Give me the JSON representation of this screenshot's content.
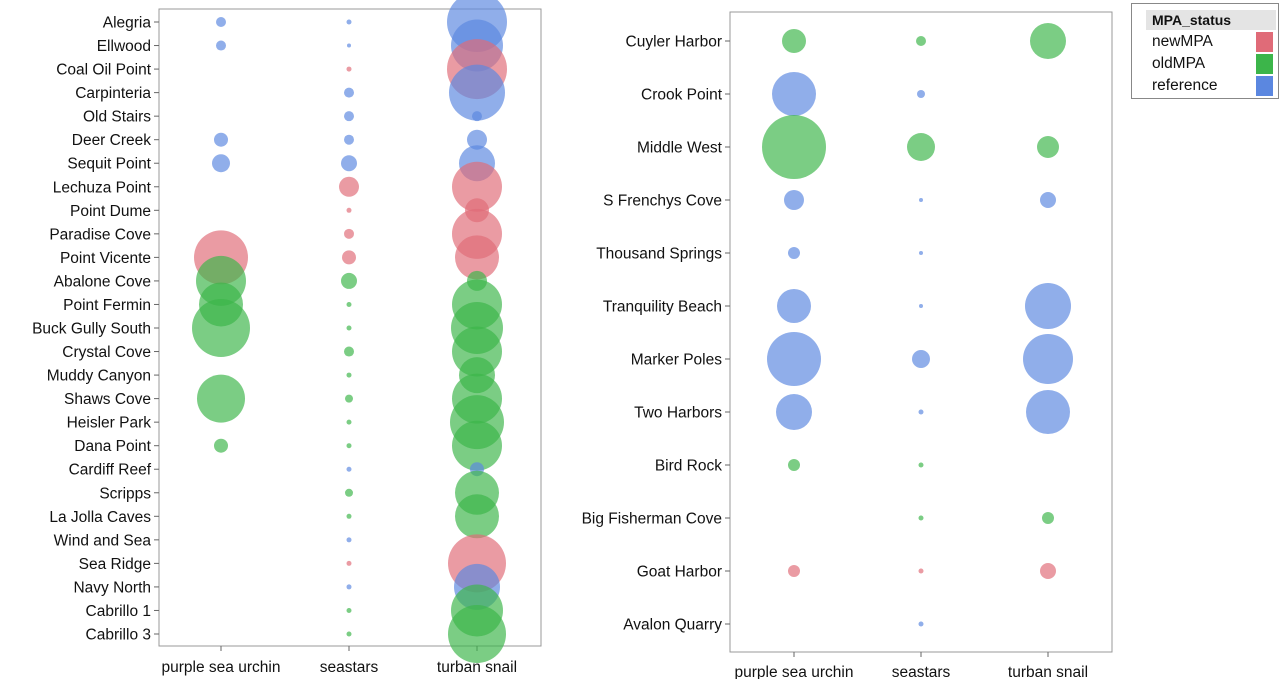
{
  "colors": {
    "newMPA": "#e06b78",
    "oldMPA": "#3cb54a",
    "reference": "#5b87e0"
  },
  "legend": {
    "title": "MPA_status",
    "items": [
      {
        "label": "newMPA",
        "key": "newMPA"
      },
      {
        "label": "oldMPA",
        "key": "oldMPA"
      },
      {
        "label": "reference",
        "key": "reference"
      }
    ]
  },
  "chart_data": [
    {
      "type": "scatter",
      "subtype": "bubble-matrix",
      "categories_x": [
        "purple sea urchin",
        "seastars",
        "turban snail"
      ],
      "size_unit": "bubble radius (relative)",
      "sites": [
        {
          "name": "Alegria",
          "status": "reference",
          "values": [
            5,
            2.5,
            30
          ]
        },
        {
          "name": "Ellwood",
          "status": "reference",
          "values": [
            5,
            2,
            26
          ]
        },
        {
          "name": "Coal Oil Point",
          "status": "newMPA",
          "values": [
            0,
            2.5,
            30
          ]
        },
        {
          "name": "Carpinteria",
          "status": "reference",
          "values": [
            0,
            5,
            28
          ]
        },
        {
          "name": "Old Stairs",
          "status": "reference",
          "values": [
            0,
            5,
            5
          ]
        },
        {
          "name": "Deer Creek",
          "status": "reference",
          "values": [
            7,
            5,
            10
          ]
        },
        {
          "name": "Sequit Point",
          "status": "reference",
          "values": [
            9,
            8,
            18
          ]
        },
        {
          "name": "Lechuza Point",
          "status": "newMPA",
          "values": [
            0,
            10,
            25
          ]
        },
        {
          "name": "Point Dume",
          "status": "newMPA",
          "values": [
            0,
            2.5,
            12
          ]
        },
        {
          "name": "Paradise Cove",
          "status": "newMPA",
          "values": [
            0,
            5,
            25
          ]
        },
        {
          "name": "Point Vicente",
          "status": "newMPA",
          "values": [
            27,
            7,
            22
          ]
        },
        {
          "name": "Abalone Cove",
          "status": "oldMPA",
          "values": [
            25,
            8,
            10
          ]
        },
        {
          "name": "Point Fermin",
          "status": "oldMPA",
          "values": [
            22,
            2.5,
            25
          ]
        },
        {
          "name": "Buck Gully South",
          "status": "oldMPA",
          "values": [
            29,
            2.5,
            26
          ]
        },
        {
          "name": "Crystal Cove",
          "status": "oldMPA",
          "values": [
            0,
            5,
            25
          ]
        },
        {
          "name": "Muddy Canyon",
          "status": "oldMPA",
          "values": [
            0,
            2.5,
            18
          ]
        },
        {
          "name": "Shaws Cove",
          "status": "oldMPA",
          "values": [
            24,
            4,
            25
          ]
        },
        {
          "name": "Heisler Park",
          "status": "oldMPA",
          "values": [
            0,
            2.5,
            27
          ]
        },
        {
          "name": "Dana Point",
          "status": "oldMPA",
          "values": [
            7,
            2.5,
            25
          ]
        },
        {
          "name": "Cardiff Reef",
          "status": "reference",
          "values": [
            0,
            2.5,
            7
          ]
        },
        {
          "name": "Scripps",
          "status": "oldMPA",
          "values": [
            0,
            4,
            22
          ]
        },
        {
          "name": "La Jolla Caves",
          "status": "oldMPA",
          "values": [
            0,
            2.5,
            22
          ]
        },
        {
          "name": "Wind and Sea",
          "status": "reference",
          "values": [
            0,
            2.5,
            0
          ]
        },
        {
          "name": "Sea Ridge",
          "status": "newMPA",
          "values": [
            0,
            2.5,
            29
          ]
        },
        {
          "name": "Navy North",
          "status": "reference",
          "values": [
            0,
            2.5,
            23
          ]
        },
        {
          "name": "Cabrillo 1",
          "status": "oldMPA",
          "values": [
            0,
            2.5,
            26
          ]
        },
        {
          "name": "Cabrillo 3",
          "status": "oldMPA",
          "values": [
            0,
            2.5,
            29
          ]
        }
      ]
    },
    {
      "type": "scatter",
      "subtype": "bubble-matrix",
      "categories_x": [
        "purple sea urchin",
        "seastars",
        "turban snail"
      ],
      "size_unit": "bubble radius (relative)",
      "sites": [
        {
          "name": "Cuyler Harbor",
          "status": "oldMPA",
          "values": [
            12,
            5,
            18
          ]
        },
        {
          "name": "Crook Point",
          "status": "reference",
          "values": [
            22,
            4,
            0
          ]
        },
        {
          "name": "Middle West",
          "status": "oldMPA",
          "values": [
            32,
            14,
            11
          ]
        },
        {
          "name": "S Frenchys Cove",
          "status": "reference",
          "values": [
            10,
            2,
            8
          ]
        },
        {
          "name": "Thousand Springs",
          "status": "reference",
          "values": [
            6,
            2,
            0
          ]
        },
        {
          "name": "Tranquility Beach",
          "status": "reference",
          "values": [
            17,
            2,
            23
          ]
        },
        {
          "name": "Marker Poles",
          "status": "reference",
          "values": [
            27,
            9,
            25
          ]
        },
        {
          "name": "Two Harbors",
          "status": "reference",
          "values": [
            18,
            2.5,
            22
          ]
        },
        {
          "name": "Bird Rock",
          "status": "oldMPA",
          "values": [
            6,
            2.5,
            0
          ]
        },
        {
          "name": "Big Fisherman Cove",
          "status": "oldMPA",
          "values": [
            0,
            2.5,
            6
          ]
        },
        {
          "name": "Goat Harbor",
          "status": "newMPA",
          "values": [
            6,
            2.5,
            8
          ]
        },
        {
          "name": "Avalon Quarry",
          "status": "reference",
          "values": [
            0,
            2.5,
            0
          ]
        }
      ]
    }
  ]
}
